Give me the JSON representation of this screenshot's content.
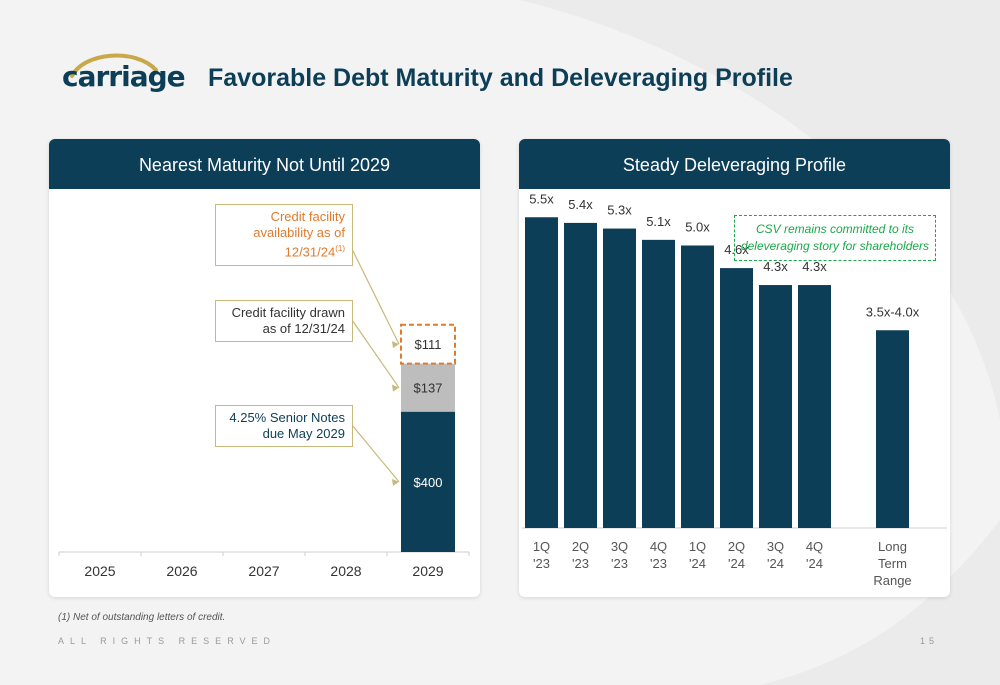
{
  "header": {
    "logo_text": "carriage",
    "title": "Favorable Debt Maturity and Deleveraging Profile"
  },
  "colors": {
    "navy": "#0d3e57",
    "gray_bar": "#bdbdbd",
    "orange": "#e07b2e",
    "green": "#1aa84a",
    "callout_border": "#c8b97a"
  },
  "left_panel": {
    "header": "Nearest Maturity Not Until 2029",
    "callouts": {
      "availability": "Credit facility availability as of 12/31/24",
      "availability_marker": "(1)",
      "drawn": "Credit facility drawn as of 12/31/24",
      "notes": "4.25% Senior Notes due May 2029"
    }
  },
  "right_panel": {
    "header": "Steady Deleveraging Profile",
    "note": "CSV remains committed to its deleveraging story for shareholders"
  },
  "chart_data": [
    {
      "type": "bar",
      "stacked": true,
      "categories": [
        "2025",
        "2026",
        "2027",
        "2028",
        "2029"
      ],
      "series": [
        {
          "name": "4.25% Senior Notes due May 2029",
          "values": [
            0,
            0,
            0,
            0,
            400
          ],
          "labels": [
            "",
            "",
            "",
            "",
            "$400"
          ],
          "color": "#0d3e57"
        },
        {
          "name": "Credit facility drawn as of 12/31/24",
          "values": [
            0,
            0,
            0,
            0,
            137
          ],
          "labels": [
            "",
            "",
            "",
            "",
            "$137"
          ],
          "color": "#bdbdbd"
        },
        {
          "name": "Credit facility availability as of 12/31/24",
          "values": [
            0,
            0,
            0,
            0,
            111
          ],
          "labels": [
            "",
            "",
            "",
            "",
            "$111"
          ],
          "color": "#ffffff",
          "dashed_border": "#e07b2e"
        }
      ],
      "ylim": [
        0,
        955
      ],
      "grid": false
    },
    {
      "type": "bar",
      "categories": [
        "1Q '23",
        "2Q '23",
        "3Q '23",
        "4Q '23",
        "1Q '24",
        "2Q '24",
        "3Q '24",
        "4Q '24",
        "",
        "Long Term Range"
      ],
      "values": [
        5.5,
        5.4,
        5.3,
        5.1,
        5.0,
        4.6,
        4.3,
        4.3,
        null,
        3.5
      ],
      "labels": [
        "5.5x",
        "5.4x",
        "5.3x",
        "5.1x",
        "5.0x",
        "4.6x",
        "4.3x",
        "4.3x",
        "",
        "3.5x-4.0x"
      ],
      "color": "#0d3e57",
      "ylim": [
        0,
        6.0
      ],
      "grid": false
    }
  ],
  "footer": {
    "footnote": "(1)   Net of outstanding letters of credit.",
    "rights": "ALL RIGHTS RESERVED",
    "page": "15"
  }
}
